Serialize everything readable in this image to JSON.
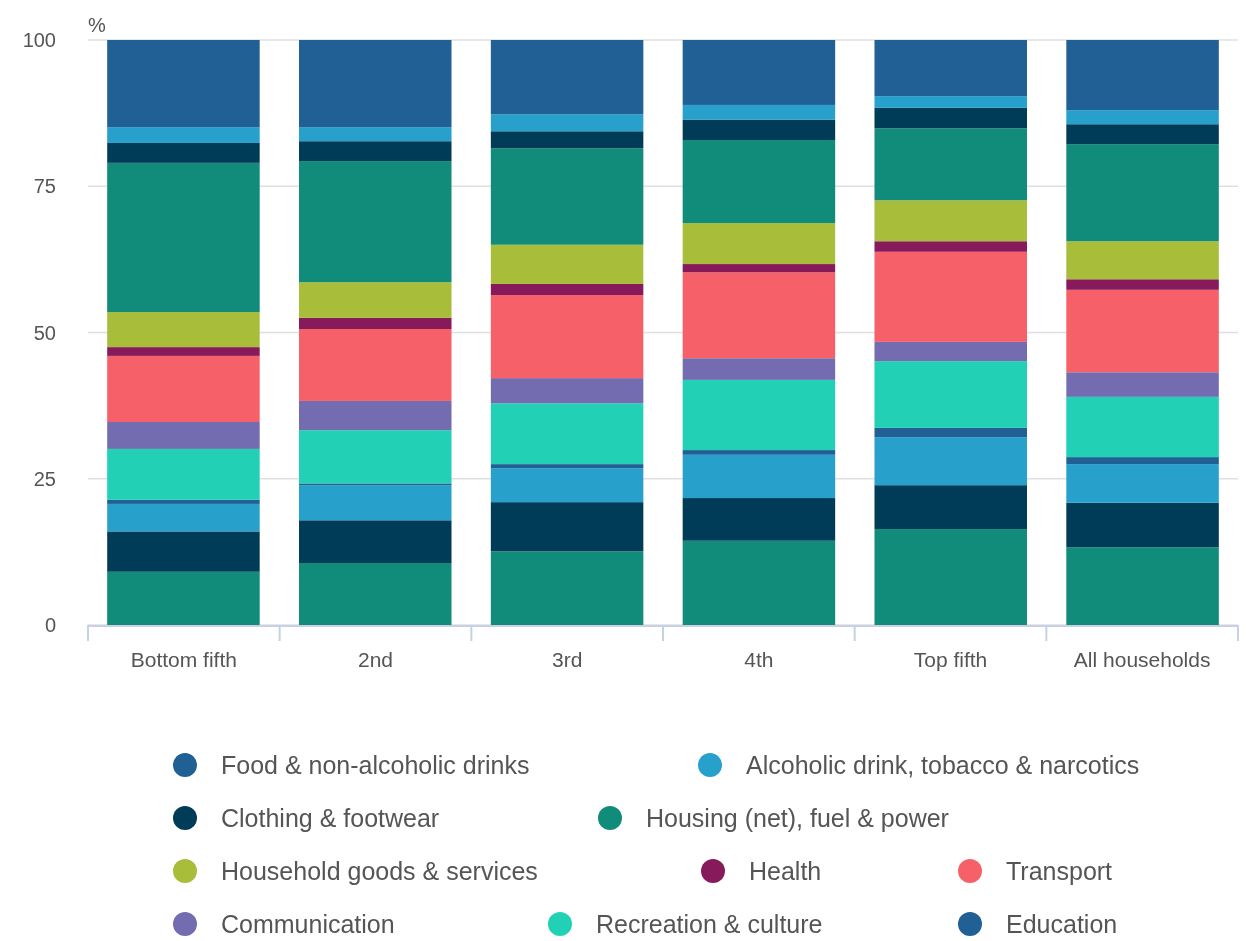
{
  "chart_data": {
    "type": "bar",
    "stacked": true,
    "ylabel": "%",
    "categories": [
      "Bottom fifth",
      "2nd",
      "3rd",
      "4th",
      "Top fifth",
      "All households"
    ],
    "ylim": [
      0,
      100
    ],
    "yticks": [
      0,
      25,
      50,
      75,
      100
    ],
    "grid": "y",
    "legend": "bottom",
    "series": [
      {
        "color": "#118c7b",
        "values": [
          9.1,
          10.6,
          12.6,
          14.4,
          16.4,
          13.3
        ]
      },
      {
        "color": "#003c57",
        "values": [
          6.9,
          7.3,
          8.4,
          7.3,
          7.5,
          7.6
        ]
      },
      {
        "color": "#27a0cc",
        "values": [
          4.7,
          6.0,
          5.8,
          7.4,
          8.2,
          6.6
        ]
      },
      {
        "name": "Education",
        "color": "#206095",
        "values": [
          0.7,
          0.3,
          0.7,
          0.8,
          1.6,
          1.2
        ]
      },
      {
        "name": "Recreation & culture",
        "color": "#22d0b6",
        "values": [
          8.7,
          9.1,
          10.4,
          12.0,
          11.4,
          10.3
        ]
      },
      {
        "name": "Communication",
        "color": "#746cb1",
        "values": [
          4.6,
          5.0,
          4.3,
          3.7,
          3.3,
          4.2
        ]
      },
      {
        "name": "Transport",
        "color": "#f66068",
        "values": [
          11.3,
          12.3,
          14.2,
          14.7,
          15.4,
          14.1
        ]
      },
      {
        "name": "Health",
        "color": "#871a5b",
        "values": [
          1.5,
          1.9,
          1.9,
          1.4,
          1.8,
          1.8
        ]
      },
      {
        "name": "Household goods & services",
        "color": "#a8bd3a",
        "values": [
          6.0,
          6.1,
          6.7,
          7.0,
          7.0,
          6.5
        ]
      },
      {
        "name": "Housing (net), fuel & power",
        "color": "#118c7b",
        "values": [
          25.5,
          20.7,
          16.5,
          14.2,
          12.3,
          16.6
        ]
      },
      {
        "name": "Clothing & footwear",
        "color": "#003c57",
        "values": [
          3.4,
          3.4,
          2.9,
          3.5,
          3.5,
          3.4
        ]
      },
      {
        "name": "Alcoholic drink, tobacco & narcotics",
        "color": "#27a0cc",
        "values": [
          2.7,
          2.4,
          2.9,
          2.5,
          2.0,
          2.4
        ]
      },
      {
        "name": "Food & non-alcoholic drinks",
        "color": "#206095",
        "values": [
          14.9,
          14.9,
          12.7,
          11.1,
          9.6,
          12.0
        ]
      }
    ]
  }
}
